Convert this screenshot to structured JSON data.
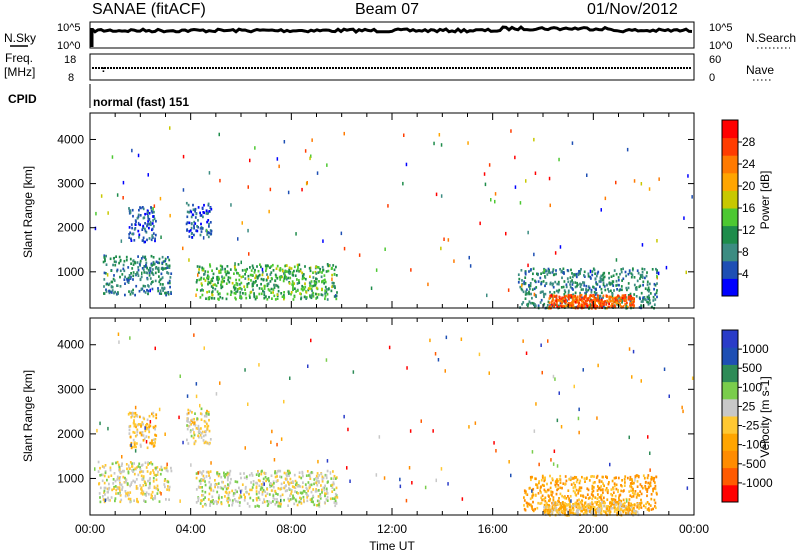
{
  "header": {
    "station": "SANAE (fitACF)",
    "beam": "Beam 07",
    "date": "01/Nov/2012"
  },
  "strip_labels": {
    "nsky": "N.Sky",
    "nsky_ticks": [
      "10^5",
      "10^0"
    ],
    "nsearch": "N.Search",
    "nsearch_ticks": [
      "10^5",
      "10^0"
    ],
    "freq": "Freq.",
    "freq_unit": "[MHz]",
    "freq_ticks": [
      "18",
      "8"
    ],
    "nave": "Nave",
    "nave_ticks": [
      "60",
      "0"
    ],
    "cpid": "CPID",
    "cpid_value": "normal (fast) 151"
  },
  "colors": {
    "power_scale": [
      "#0000ff",
      "#1e4fb4",
      "#3c8c82",
      "#1e8c4b",
      "#4dc832",
      "#c8c800",
      "#ffa500",
      "#ff7a00",
      "#ff3c00",
      "#ff0000"
    ],
    "velocity_scale": [
      "#ff0000",
      "#ff5a00",
      "#ff8c00",
      "#ffa500",
      "#ffc832",
      "#c8c8c8",
      "#7acd4c",
      "#2e8b57",
      "#1e4fb4",
      "#2a3cc8"
    ]
  },
  "chart_data": [
    {
      "type": "heatmap",
      "name": "power",
      "ylabel": "Slant Range [km]",
      "xlabel": "Time UT",
      "x_ticks": [
        "00:00",
        "04:00",
        "08:00",
        "12:00",
        "16:00",
        "20:00",
        "00:00"
      ],
      "y_ticks": [
        "1000",
        "2000",
        "3000",
        "4000"
      ],
      "ylim": [
        180,
        4600
      ],
      "xlim": [
        0,
        24
      ],
      "colorbar_label": "Power [dB]",
      "colorbar_ticks": [
        "28",
        "24",
        "20",
        "16",
        "12",
        "8",
        "4"
      ],
      "clim": [
        0,
        30
      ],
      "regions": [
        {
          "t0": 0.5,
          "t1": 3.2,
          "r0": 500,
          "r1": 1400,
          "v": 8
        },
        {
          "t0": 1.5,
          "t1": 2.6,
          "r0": 1700,
          "r1": 2500,
          "v": 5
        },
        {
          "t0": 3.8,
          "t1": 4.8,
          "r0": 1800,
          "r1": 2600,
          "v": 5
        },
        {
          "t0": 4.2,
          "t1": 9.8,
          "r0": 400,
          "r1": 1200,
          "v": 12
        },
        {
          "t0": 17.0,
          "t1": 22.5,
          "r0": 200,
          "r1": 1100,
          "v": 8
        },
        {
          "t0": 18.2,
          "t1": 21.6,
          "r0": 200,
          "r1": 500,
          "v": 24
        }
      ]
    },
    {
      "type": "heatmap",
      "name": "velocity",
      "ylabel": "Slant Range [km]",
      "xlabel": "Time UT",
      "x_ticks": [
        "00:00",
        "04:00",
        "08:00",
        "12:00",
        "16:00",
        "20:00",
        "00:00"
      ],
      "y_ticks": [
        "1000",
        "2000",
        "3000",
        "4000"
      ],
      "ylim": [
        180,
        4600
      ],
      "xlim": [
        0,
        24
      ],
      "colorbar_label": "Velocity [m s-1]",
      "colorbar_ticks": [
        "1000",
        "500",
        "100",
        "25",
        "-25",
        "-100",
        "-500",
        "-1000"
      ],
      "clim": [
        -1200,
        1200
      ],
      "regions": [
        {
          "t0": 0.3,
          "t1": 3.2,
          "r0": 500,
          "r1": 1400,
          "v": 60
        },
        {
          "t0": 1.5,
          "t1": 2.6,
          "r0": 1700,
          "r1": 2500,
          "v": -80
        },
        {
          "t0": 3.8,
          "t1": 4.8,
          "r0": 1800,
          "r1": 2600,
          "v": 0
        },
        {
          "t0": 4.2,
          "t1": 9.8,
          "r0": 400,
          "r1": 1200,
          "v": 150
        },
        {
          "t0": 17.2,
          "t1": 22.5,
          "r0": 300,
          "r1": 1100,
          "v": -400
        },
        {
          "t0": 18.0,
          "t1": 21.8,
          "r0": 200,
          "r1": 500,
          "v": -120
        }
      ]
    }
  ]
}
